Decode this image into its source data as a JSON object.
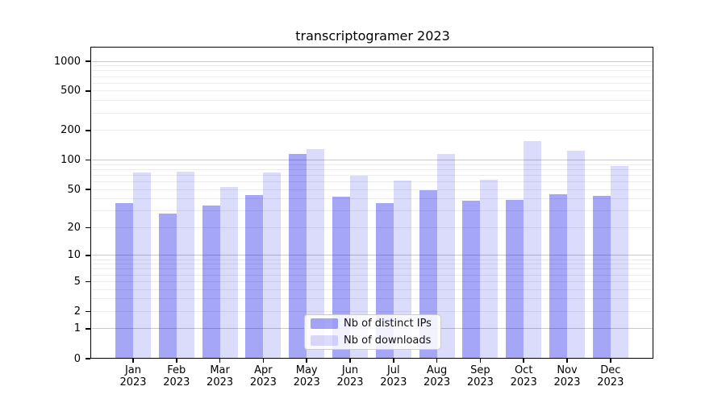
{
  "chart_data": {
    "type": "bar",
    "title": "transcriptogramer 2023",
    "categories": [
      "Jan",
      "Feb",
      "Mar",
      "Apr",
      "May",
      "Jun",
      "Jul",
      "Aug",
      "Sep",
      "Oct",
      "Nov",
      "Dec"
    ],
    "year_label": "2023",
    "series": [
      {
        "name": "Nb of distinct IPs",
        "color": "rgba(0,0,230,0.35)",
        "values": [
          36,
          28,
          34,
          44,
          116,
          42,
          36,
          49,
          38,
          39,
          45,
          43
        ]
      },
      {
        "name": "Nb of downloads",
        "color": "rgba(0,0,230,0.14)",
        "values": [
          74,
          76,
          53,
          74,
          130,
          69,
          62,
          115,
          63,
          155,
          125,
          87
        ]
      }
    ],
    "yscale": "symlog (position proportional to log10(value+1))",
    "yticks": [
      0,
      1,
      2,
      5,
      10,
      20,
      50,
      100,
      200,
      500,
      1000
    ],
    "ylim": [
      0,
      1350
    ],
    "xlabel": "",
    "ylabel": "",
    "grid": "horizontal major and minor gridlines",
    "legend_position": "lower center"
  },
  "colors": {
    "major_grid": "#c9c9c9",
    "minor_grid": "#ececec",
    "spine": "#000000",
    "background": "#ffffff"
  }
}
